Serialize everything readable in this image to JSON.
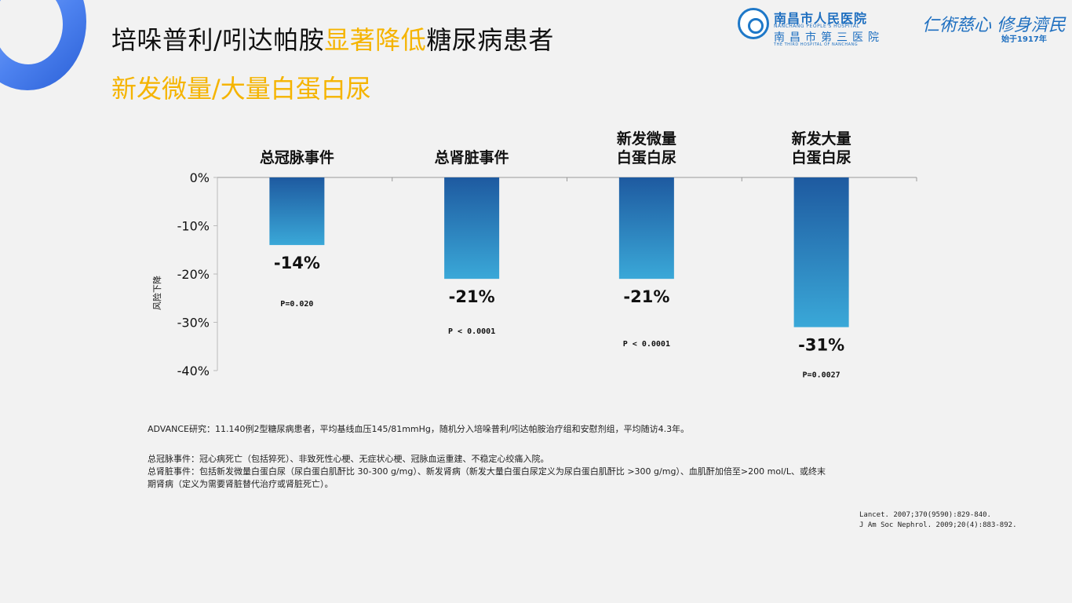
{
  "header": {
    "title_prefix": "培哚普利/吲达帕胺",
    "title_highlight": "显著降低",
    "title_suffix": "糖尿病患者",
    "subtitle": "新发微量/大量白蛋白尿"
  },
  "logo": {
    "name_cn": "南昌市人民医院",
    "name_en": "NANCHANG PEOPLE'S HOSPITAL",
    "name2_cn": "南昌市第三医院",
    "name2_en": "THE THIRD HOSPITAL OF NANCHANG",
    "slogan1": "仁術慈心",
    "slogan2": "修身濟民",
    "since": "始于1917年"
  },
  "colors": {
    "accent": "#f5b400",
    "bar_top": "#1e5aa0",
    "bar_bottom": "#3aa8d8"
  },
  "chart_data": {
    "type": "bar",
    "categories": [
      [
        "总冠脉事件"
      ],
      [
        "总肾脏事件"
      ],
      [
        "新发微量",
        "白蛋白尿"
      ],
      [
        "新发大量",
        "白蛋白尿"
      ]
    ],
    "values": [
      -14,
      -21,
      -21,
      -31
    ],
    "value_labels": [
      "-14%",
      "-21%",
      "-21%",
      "-31%"
    ],
    "p_values": [
      "P=0.020",
      "P < 0.0001",
      "P < 0.0001",
      "P=0.0027"
    ],
    "ylim": [
      -40,
      0
    ],
    "yticks": [
      0,
      -10,
      -20,
      -30,
      -40
    ],
    "ytick_labels": [
      "0%",
      "-10%",
      "-20%",
      "-30%",
      "-40%"
    ],
    "ylabel": "风险下降",
    "xlabel": ""
  },
  "notes": {
    "study": "ADVANCE研究：11.140例2型糖尿病患者，平均基线血压145/81mmHg，随机分入培哚普利/吲达帕胺治疗组和安慰剂组，平均随访4.3年。",
    "line1": "总冠脉事件：冠心病死亡（包括猝死）、非致死性心梗、无症状心梗、冠脉血运重建、不稳定心绞痛入院。",
    "line2": "总肾脏事件：包括新发微量白蛋白尿（尿白蛋白肌酐比 30-300 g/mg）、新发肾病（新发大量白蛋白尿定义为尿白蛋白肌酐比 >300 g/mg）、血肌酐加倍至>200 mol/L、或终末",
    "line3": "期肾病（定义为需要肾脏替代治疗或肾脏死亡）。"
  },
  "references": [
    "Lancet. 2007;370(9590):829-840.",
    "J Am Soc Nephrol. 2009;20(4):883-892."
  ]
}
